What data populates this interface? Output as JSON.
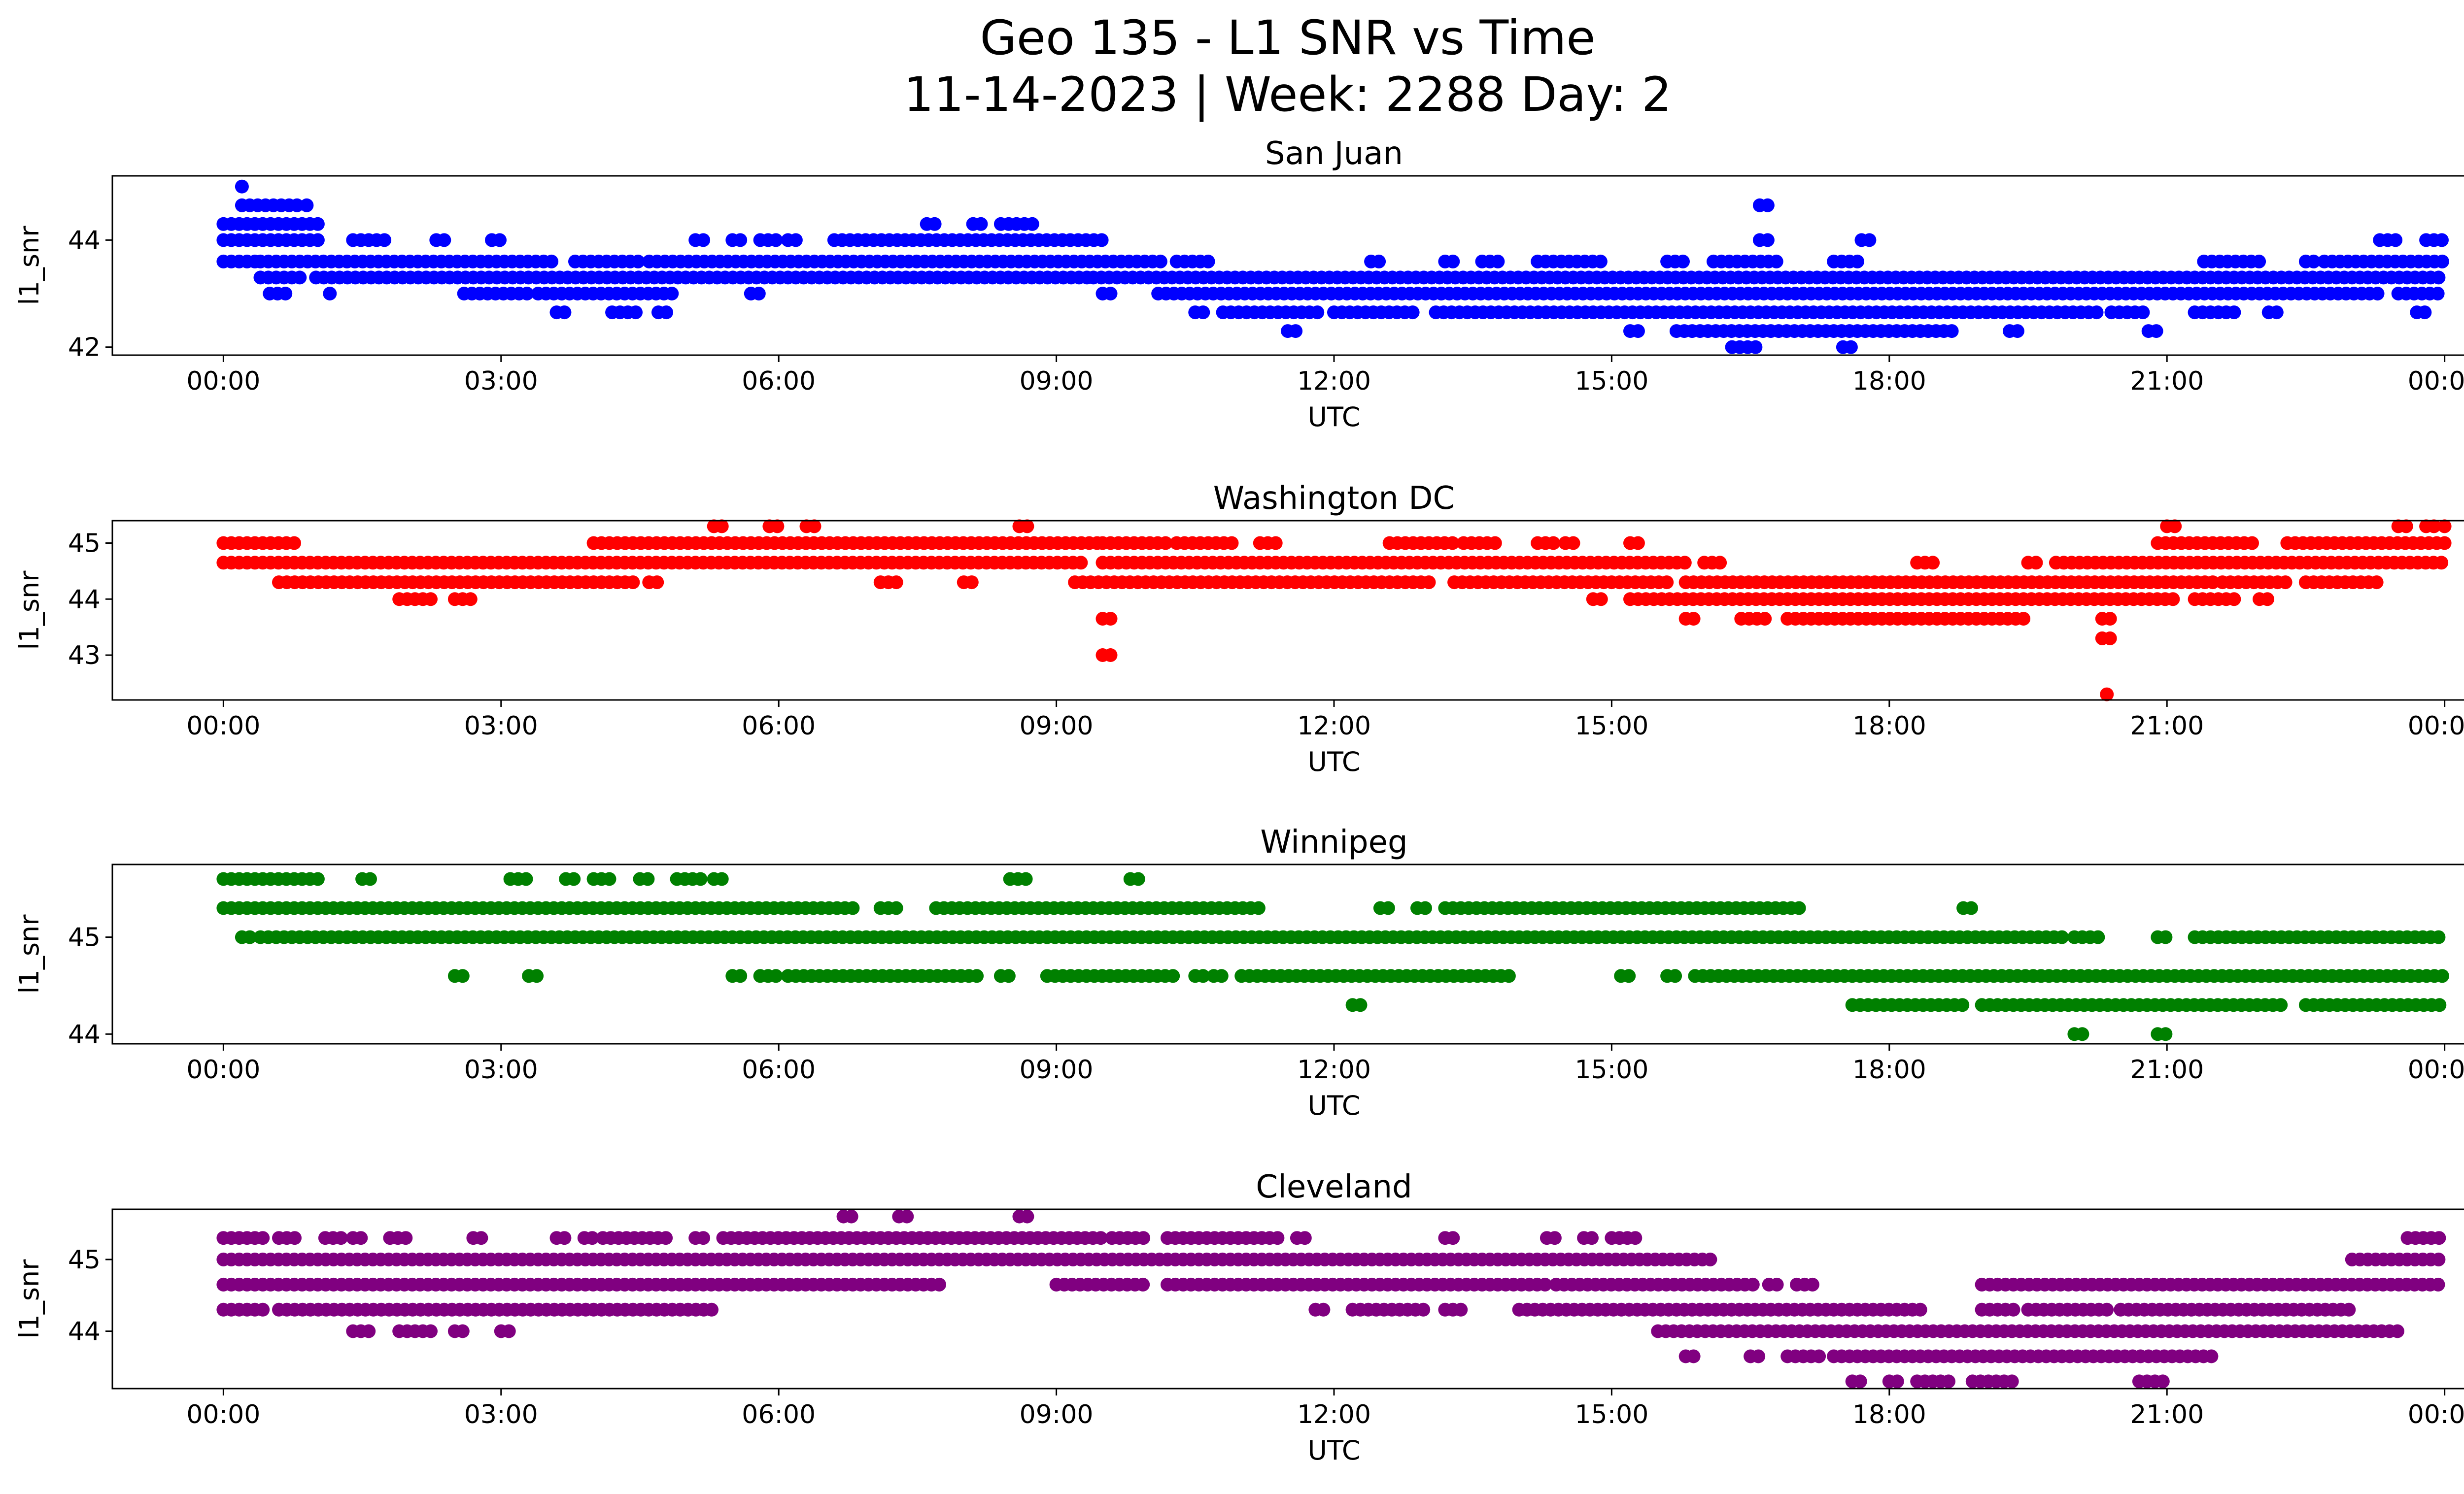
{
  "figure": {
    "title_line1": "Geo 135 - L1 SNR vs Time",
    "title_line2": "11-14-2023 | Week: 2288 Day: 2"
  },
  "chart_data": [
    {
      "type": "scatter",
      "title": "San Juan",
      "xlabel": "UTC",
      "ylabel": "l1_snr",
      "color": "#0000ff",
      "xticks": [
        "00:00",
        "03:00",
        "06:00",
        "09:00",
        "12:00",
        "15:00",
        "18:00",
        "21:00",
        "00:00"
      ],
      "yticks": [
        42,
        44
      ],
      "xlim_hours": [
        -1.2,
        25.2
      ],
      "ylim": [
        41.85,
        45.2
      ],
      "levels": [
        {
          "y": 43.6,
          "ranges": [
            [
              0.0,
              0.35
            ],
            [
              10.3,
              10.7
            ],
            [
              12.4,
              12.5
            ],
            [
              13.2,
              13.3
            ],
            [
              13.6,
              13.8
            ],
            [
              14.2,
              14.9
            ],
            [
              15.6,
              15.8
            ],
            [
              16.1,
              16.8
            ],
            [
              17.4,
              17.7
            ],
            [
              21.4,
              22.0
            ],
            [
              22.5,
              22.6
            ],
            [
              22.7,
              24.0
            ]
          ]
        },
        {
          "y": 43.6,
          "ranges": [
            [
              0.4,
              3.6
            ],
            [
              3.8,
              4.5
            ],
            [
              4.6,
              10.2
            ]
          ]
        },
        {
          "y": 43.3,
          "ranges": [
            [
              0.4,
              0.9
            ],
            [
              1.0,
              9.4
            ],
            [
              9.4,
              24.0
            ]
          ]
        },
        {
          "y": 43.0,
          "ranges": [
            [
              0.5,
              0.7
            ],
            [
              1.15,
              1.2
            ],
            [
              2.6,
              3.3
            ],
            [
              3.4,
              4.9
            ],
            [
              5.7,
              5.8
            ],
            [
              9.5,
              9.6
            ],
            [
              10.1,
              23.3
            ],
            [
              23.5,
              24.0
            ]
          ]
        },
        {
          "y": 42.65,
          "ranges": [
            [
              3.6,
              3.7
            ],
            [
              4.2,
              4.5
            ],
            [
              4.7,
              4.8
            ],
            [
              10.5,
              10.6
            ],
            [
              10.8,
              11.9
            ],
            [
              12.0,
              12.9
            ],
            [
              13.1,
              20.3
            ],
            [
              20.4,
              20.8
            ],
            [
              21.3,
              21.8
            ],
            [
              22.1,
              22.2
            ],
            [
              23.7,
              23.8
            ]
          ]
        },
        {
          "y": 42.3,
          "ranges": [
            [
              11.5,
              11.6
            ],
            [
              15.2,
              15.3
            ],
            [
              15.7,
              18.7
            ],
            [
              19.3,
              19.4
            ],
            [
              20.8,
              20.9
            ]
          ]
        },
        {
          "y": 44.0,
          "ranges": [
            [
              0.0,
              1.1
            ],
            [
              1.4,
              1.8
            ],
            [
              2.3,
              2.4
            ],
            [
              2.9,
              3.0
            ],
            [
              5.1,
              5.2
            ],
            [
              5.5,
              5.6
            ],
            [
              5.8,
              6.0
            ],
            [
              6.1,
              6.2
            ],
            [
              6.6,
              9.5
            ],
            [
              23.3,
              23.5
            ],
            [
              23.8,
              24.0
            ]
          ]
        },
        {
          "y": 44.3,
          "ranges": [
            [
              0.0,
              1.1
            ],
            [
              7.6,
              7.7
            ],
            [
              8.1,
              8.2
            ],
            [
              8.4,
              8.8
            ]
          ]
        },
        {
          "y": 44.65,
          "ranges": [
            [
              0.2,
              0.8
            ],
            [
              0.9,
              0.95
            ],
            [
              16.6,
              16.7
            ]
          ]
        },
        {
          "y": 45.0,
          "ranges": [
            [
              0.2,
              0.25
            ]
          ]
        },
        {
          "y": 42.0,
          "ranges": [
            [
              16.3,
              16.6
            ],
            [
              17.5,
              17.6
            ]
          ]
        },
        {
          "y": 44.0,
          "ranges": [
            [
              16.6,
              16.7
            ],
            [
              17.7,
              17.8
            ]
          ]
        }
      ]
    },
    {
      "type": "scatter",
      "title": "Washington DC",
      "xlabel": "UTC",
      "ylabel": "l1_snr",
      "color": "#ff0000",
      "xticks": [
        "00:00",
        "03:00",
        "06:00",
        "09:00",
        "12:00",
        "15:00",
        "18:00",
        "21:00",
        "00:00"
      ],
      "yticks": [
        43,
        44,
        45
      ],
      "xlim_hours": [
        -1.2,
        25.2
      ],
      "ylim": [
        42.2,
        45.4
      ],
      "levels": [
        {
          "y": 45.0,
          "ranges": [
            [
              0.0,
              0.8
            ],
            [
              4.0,
              9.5
            ],
            [
              9.5,
              10.2
            ],
            [
              10.3,
              10.9
            ],
            [
              11.2,
              11.4
            ],
            [
              12.6,
              13.3
            ],
            [
              13.4,
              13.8
            ],
            [
              14.2,
              14.4
            ],
            [
              14.5,
              14.6
            ],
            [
              15.2,
              15.3
            ],
            [
              20.9,
              22.0
            ],
            [
              22.3,
              24.0
            ]
          ]
        },
        {
          "y": 44.65,
          "ranges": [
            [
              0.0,
              9.3
            ],
            [
              9.5,
              15.8
            ],
            [
              16.0,
              16.2
            ],
            [
              18.3,
              18.5
            ],
            [
              19.5,
              19.6
            ],
            [
              19.8,
              24.0
            ]
          ]
        },
        {
          "y": 44.3,
          "ranges": [
            [
              0.6,
              4.5
            ],
            [
              4.6,
              4.7
            ],
            [
              7.1,
              7.3
            ],
            [
              8.0,
              8.1
            ],
            [
              9.2,
              13.1
            ],
            [
              13.3,
              15.6
            ],
            [
              15.8,
              21.5
            ],
            [
              21.6,
              22.3
            ],
            [
              22.5,
              23.3
            ]
          ]
        },
        {
          "y": 44.0,
          "ranges": [
            [
              1.9,
              2.3
            ],
            [
              2.5,
              2.7
            ],
            [
              14.8,
              14.9
            ],
            [
              15.2,
              21.1
            ],
            [
              21.3,
              21.8
            ],
            [
              22.0,
              22.1
            ]
          ]
        },
        {
          "y": 43.65,
          "ranges": [
            [
              9.5,
              9.6
            ],
            [
              15.8,
              15.9
            ],
            [
              16.4,
              16.7
            ],
            [
              16.9,
              19.5
            ],
            [
              20.3,
              20.4
            ]
          ]
        },
        {
          "y": 43.3,
          "ranges": [
            [
              20.3,
              20.4
            ]
          ]
        },
        {
          "y": 43.0,
          "ranges": [
            [
              9.5,
              9.6
            ]
          ]
        },
        {
          "y": 42.3,
          "ranges": [
            [
              20.35,
              20.4
            ]
          ]
        },
        {
          "y": 45.3,
          "ranges": [
            [
              5.3,
              5.4
            ],
            [
              5.9,
              6.0
            ],
            [
              6.3,
              6.4
            ],
            [
              8.6,
              8.7
            ],
            [
              21.0,
              21.1
            ],
            [
              23.5,
              23.6
            ],
            [
              23.8,
              23.9
            ],
            [
              24.0,
              24.05
            ]
          ]
        }
      ]
    },
    {
      "type": "scatter",
      "title": "Winnipeg",
      "xlabel": "UTC",
      "ylabel": "l1_snr",
      "color": "#008000",
      "xticks": [
        "00:00",
        "03:00",
        "06:00",
        "09:00",
        "12:00",
        "15:00",
        "18:00",
        "21:00",
        "00:00"
      ],
      "yticks": [
        44,
        45
      ],
      "xlim_hours": [
        -1.2,
        25.2
      ],
      "ylim": [
        43.9,
        45.75
      ],
      "levels": [
        {
          "y": 45.6,
          "ranges": [
            [
              0.0,
              1.1
            ],
            [
              1.5,
              1.6
            ],
            [
              3.1,
              3.3
            ],
            [
              3.7,
              3.8
            ],
            [
              4.0,
              4.2
            ],
            [
              4.5,
              4.6
            ],
            [
              4.9,
              5.2
            ],
            [
              5.3,
              5.4
            ],
            [
              8.5,
              8.7
            ],
            [
              9.8,
              9.9
            ]
          ]
        },
        {
          "y": 45.3,
          "ranges": [
            [
              0.0,
              6.8
            ],
            [
              7.1,
              7.3
            ],
            [
              7.7,
              11.2
            ],
            [
              12.5,
              12.6
            ],
            [
              12.9,
              13.0
            ],
            [
              13.2,
              17.1
            ],
            [
              18.8,
              18.9
            ]
          ]
        },
        {
          "y": 45.0,
          "ranges": [
            [
              0.2,
              0.3
            ],
            [
              0.4,
              19.9
            ],
            [
              20.0,
              20.3
            ],
            [
              20.9,
              21.0
            ],
            [
              21.3,
              24.0
            ]
          ]
        },
        {
          "y": 44.6,
          "ranges": [
            [
              2.5,
              2.6
            ],
            [
              3.3,
              3.4
            ],
            [
              5.5,
              5.6
            ],
            [
              5.8,
              6.0
            ],
            [
              6.1,
              8.2
            ],
            [
              8.4,
              8.5
            ],
            [
              8.9,
              10.3
            ],
            [
              10.5,
              10.6
            ],
            [
              10.7,
              10.8
            ],
            [
              11.0,
              13.9
            ],
            [
              15.1,
              15.2
            ],
            [
              15.6,
              15.7
            ],
            [
              15.9,
              24.0
            ]
          ]
        },
        {
          "y": 44.3,
          "ranges": [
            [
              12.2,
              12.3
            ],
            [
              17.6,
              18.8
            ],
            [
              19.0,
              22.3
            ],
            [
              22.5,
              24.0
            ]
          ]
        },
        {
          "y": 44.0,
          "ranges": [
            [
              20.0,
              20.1
            ],
            [
              20.9,
              21.0
            ]
          ]
        }
      ]
    },
    {
      "type": "scatter",
      "title": "Cleveland",
      "xlabel": "UTC",
      "ylabel": "l1_snr",
      "color": "#800080",
      "xticks": [
        "00:00",
        "03:00",
        "06:00",
        "09:00",
        "12:00",
        "15:00",
        "18:00",
        "21:00",
        "00:00"
      ],
      "yticks": [
        44,
        45
      ],
      "xlim_hours": [
        -1.2,
        25.2
      ],
      "ylim": [
        43.2,
        45.7
      ],
      "levels": [
        {
          "y": 45.3,
          "ranges": [
            [
              0.0,
              0.5
            ],
            [
              0.6,
              0.8
            ],
            [
              1.1,
              1.3
            ],
            [
              1.4,
              1.5
            ],
            [
              1.8,
              2.0
            ],
            [
              2.7,
              2.8
            ],
            [
              3.6,
              3.7
            ],
            [
              3.9,
              4.0
            ],
            [
              4.1,
              4.8
            ],
            [
              5.1,
              5.2
            ],
            [
              5.4,
              9.5
            ],
            [
              9.6,
              10.0
            ],
            [
              10.2,
              11.4
            ],
            [
              11.6,
              11.7
            ],
            [
              13.2,
              13.3
            ],
            [
              14.3,
              14.4
            ],
            [
              14.7,
              14.8
            ],
            [
              15.0,
              15.3
            ],
            [
              23.6,
              24.0
            ]
          ]
        },
        {
          "y": 45.0,
          "ranges": [
            [
              0.0,
              16.1
            ],
            [
              23.0,
              24.0
            ]
          ]
        },
        {
          "y": 44.65,
          "ranges": [
            [
              0.0,
              7.8
            ],
            [
              9.0,
              10.0
            ],
            [
              10.2,
              14.3
            ],
            [
              14.4,
              16.6
            ],
            [
              16.7,
              16.8
            ],
            [
              17.0,
              17.2
            ],
            [
              19.0,
              24.0
            ]
          ]
        },
        {
          "y": 44.3,
          "ranges": [
            [
              0.0,
              0.5
            ],
            [
              0.6,
              5.3
            ],
            [
              11.8,
              11.9
            ],
            [
              12.2,
              13.0
            ],
            [
              13.2,
              13.4
            ],
            [
              14.0,
              18.4
            ],
            [
              19.0,
              19.4
            ],
            [
              19.5,
              20.4
            ],
            [
              20.5,
              23.0
            ]
          ]
        },
        {
          "y": 44.0,
          "ranges": [
            [
              1.4,
              1.6
            ],
            [
              1.9,
              2.3
            ],
            [
              2.5,
              2.6
            ],
            [
              3.0,
              3.1
            ],
            [
              15.5,
              23.5
            ]
          ]
        },
        {
          "y": 43.65,
          "ranges": [
            [
              15.8,
              15.9
            ],
            [
              16.5,
              16.6
            ],
            [
              16.9,
              17.3
            ],
            [
              17.4,
              21.5
            ]
          ]
        },
        {
          "y": 43.3,
          "ranges": [
            [
              17.6,
              17.7
            ],
            [
              18.0,
              18.1
            ],
            [
              18.3,
              18.7
            ],
            [
              18.9,
              19.4
            ],
            [
              20.7,
              21.0
            ]
          ]
        },
        {
          "y": 45.6,
          "ranges": [
            [
              6.7,
              6.8
            ],
            [
              7.3,
              7.4
            ],
            [
              8.6,
              8.7
            ]
          ]
        }
      ]
    }
  ]
}
